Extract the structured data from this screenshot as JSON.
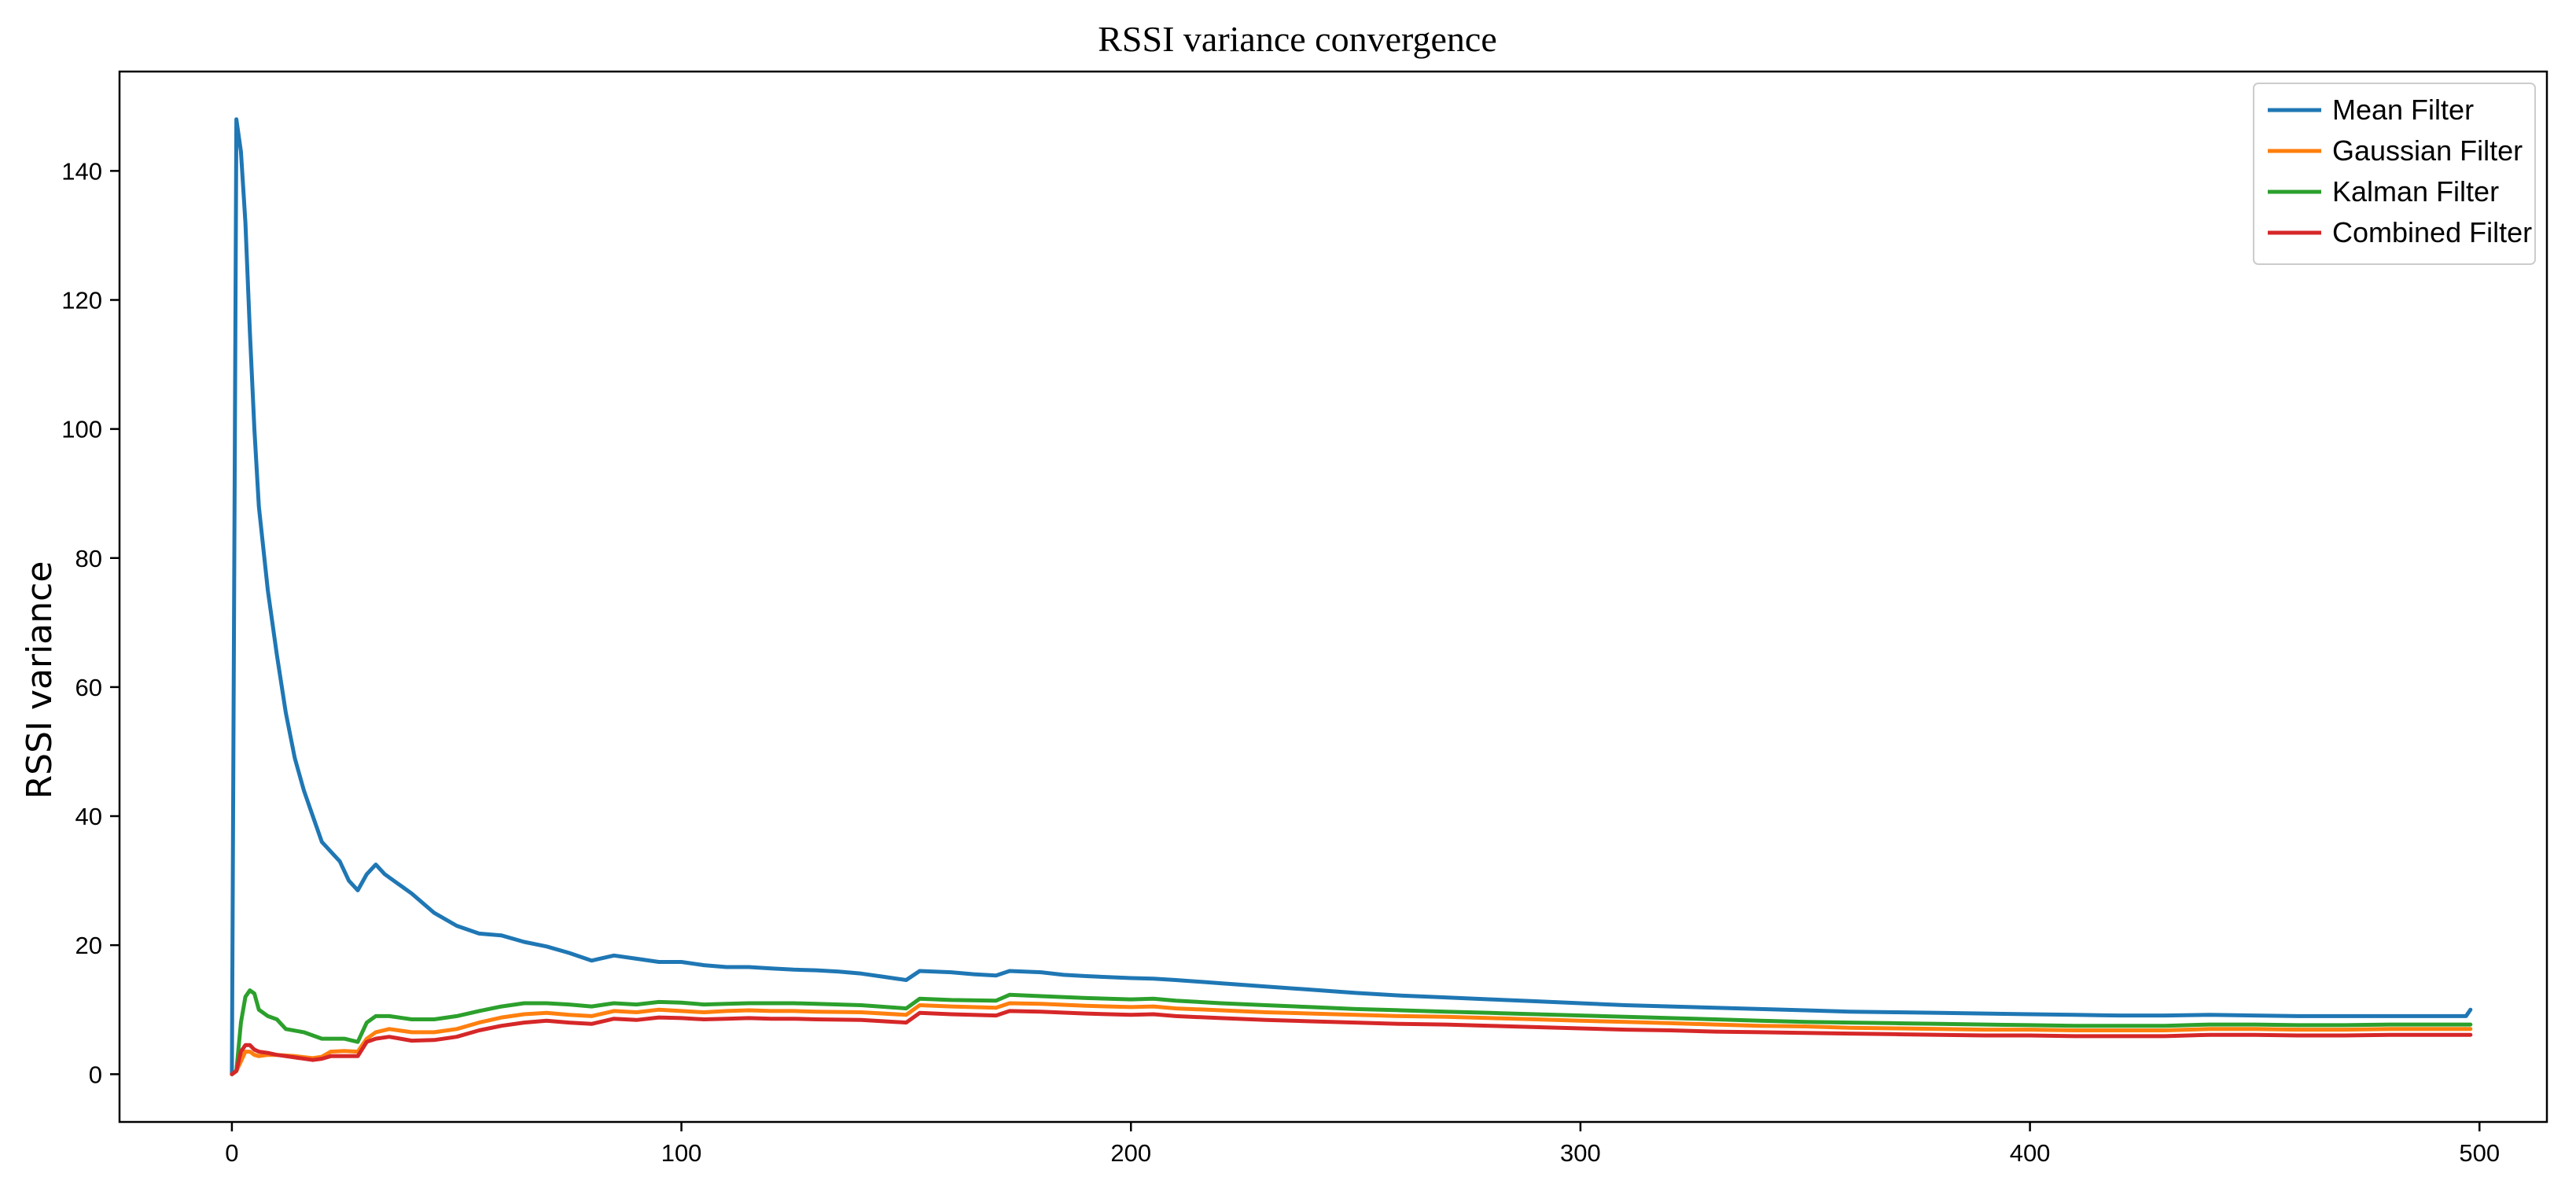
{
  "chart_data": {
    "type": "line",
    "title": "RSSI variance convergence",
    "xlabel": "",
    "ylabel": "RSSI variance",
    "xlim": [
      -25,
      515
    ],
    "ylim": [
      -7.4,
      155.4
    ],
    "x_ticks": [
      0,
      100,
      200,
      300,
      400,
      500
    ],
    "y_ticks": [
      0,
      20,
      40,
      60,
      80,
      100,
      120,
      140
    ],
    "grid": false,
    "legend_position": "top-right",
    "series": [
      {
        "name": "Mean Filter",
        "color": "#1f77b4",
        "points": [
          [
            0,
            0
          ],
          [
            1,
            148
          ],
          [
            2,
            143
          ],
          [
            3,
            132
          ],
          [
            4,
            115
          ],
          [
            5,
            100
          ],
          [
            6,
            88
          ],
          [
            8,
            75
          ],
          [
            10,
            65
          ],
          [
            12,
            56
          ],
          [
            14,
            49
          ],
          [
            16,
            44
          ],
          [
            18,
            40
          ],
          [
            20,
            36
          ],
          [
            22,
            34.5
          ],
          [
            24,
            33
          ],
          [
            26,
            30
          ],
          [
            28,
            28.5
          ],
          [
            30,
            31
          ],
          [
            32,
            32.5
          ],
          [
            34,
            31
          ],
          [
            36,
            30
          ],
          [
            38,
            29
          ],
          [
            40,
            28
          ],
          [
            45,
            25
          ],
          [
            50,
            23
          ],
          [
            55,
            21.8
          ],
          [
            60,
            21.5
          ],
          [
            65,
            20.5
          ],
          [
            70,
            19.8
          ],
          [
            75,
            18.8
          ],
          [
            80,
            17.6
          ],
          [
            85,
            18.4
          ],
          [
            90,
            17.9
          ],
          [
            95,
            17.4
          ],
          [
            100,
            17.4
          ],
          [
            105,
            16.9
          ],
          [
            110,
            16.6
          ],
          [
            115,
            16.6
          ],
          [
            120,
            16.4
          ],
          [
            125,
            16.2
          ],
          [
            130,
            16.1
          ],
          [
            135,
            15.9
          ],
          [
            140,
            15.6
          ],
          [
            145,
            15.1
          ],
          [
            150,
            14.6
          ],
          [
            153,
            16
          ],
          [
            160,
            15.8
          ],
          [
            165,
            15.5
          ],
          [
            170,
            15.3
          ],
          [
            173,
            16
          ],
          [
            180,
            15.8
          ],
          [
            185,
            15.4
          ],
          [
            190,
            15.2
          ],
          [
            200,
            14.9
          ],
          [
            205,
            14.8
          ],
          [
            210,
            14.6
          ],
          [
            220,
            14.1
          ],
          [
            230,
            13.6
          ],
          [
            240,
            13.1
          ],
          [
            250,
            12.6
          ],
          [
            260,
            12.2
          ],
          [
            270,
            11.9
          ],
          [
            280,
            11.6
          ],
          [
            290,
            11.3
          ],
          [
            300,
            11.0
          ],
          [
            310,
            10.7
          ],
          [
            320,
            10.5
          ],
          [
            330,
            10.3
          ],
          [
            340,
            10.1
          ],
          [
            350,
            9.9
          ],
          [
            360,
            9.7
          ],
          [
            370,
            9.6
          ],
          [
            380,
            9.5
          ],
          [
            390,
            9.4
          ],
          [
            400,
            9.3
          ],
          [
            410,
            9.2
          ],
          [
            420,
            9.1
          ],
          [
            430,
            9.1
          ],
          [
            440,
            9.2
          ],
          [
            450,
            9.1
          ],
          [
            460,
            9.0
          ],
          [
            470,
            9.0
          ],
          [
            480,
            9.0
          ],
          [
            490,
            9.0
          ],
          [
            497,
            9.0
          ],
          [
            498,
            10
          ]
        ]
      },
      {
        "name": "Gaussian Filter",
        "color": "#ff7f0e",
        "points": [
          [
            0,
            0
          ],
          [
            1,
            0.5
          ],
          [
            2,
            2
          ],
          [
            3,
            3.5
          ],
          [
            4,
            3.5
          ],
          [
            5,
            3
          ],
          [
            6,
            2.8
          ],
          [
            8,
            3
          ],
          [
            10,
            3
          ],
          [
            14,
            2.8
          ],
          [
            18,
            2.5
          ],
          [
            20,
            2.7
          ],
          [
            22,
            3.5
          ],
          [
            25,
            3.6
          ],
          [
            28,
            3.5
          ],
          [
            30,
            5.5
          ],
          [
            32,
            6.5
          ],
          [
            35,
            7
          ],
          [
            40,
            6.5
          ],
          [
            45,
            6.5
          ],
          [
            50,
            7
          ],
          [
            55,
            8
          ],
          [
            60,
            8.8
          ],
          [
            65,
            9.3
          ],
          [
            70,
            9.5
          ],
          [
            75,
            9.2
          ],
          [
            80,
            9
          ],
          [
            85,
            9.8
          ],
          [
            90,
            9.6
          ],
          [
            95,
            10
          ],
          [
            100,
            9.8
          ],
          [
            105,
            9.6
          ],
          [
            110,
            9.8
          ],
          [
            115,
            9.9
          ],
          [
            120,
            9.8
          ],
          [
            125,
            9.8
          ],
          [
            130,
            9.7
          ],
          [
            140,
            9.6
          ],
          [
            150,
            9.2
          ],
          [
            153,
            10.7
          ],
          [
            160,
            10.5
          ],
          [
            170,
            10.3
          ],
          [
            173,
            11
          ],
          [
            180,
            10.9
          ],
          [
            190,
            10.6
          ],
          [
            200,
            10.4
          ],
          [
            205,
            10.5
          ],
          [
            210,
            10.2
          ],
          [
            220,
            9.9
          ],
          [
            230,
            9.6
          ],
          [
            240,
            9.4
          ],
          [
            250,
            9.2
          ],
          [
            260,
            9.0
          ],
          [
            270,
            8.9
          ],
          [
            280,
            8.7
          ],
          [
            290,
            8.5
          ],
          [
            300,
            8.3
          ],
          [
            310,
            8.1
          ],
          [
            320,
            7.9
          ],
          [
            330,
            7.7
          ],
          [
            340,
            7.5
          ],
          [
            350,
            7.4
          ],
          [
            360,
            7.2
          ],
          [
            370,
            7.1
          ],
          [
            380,
            7.0
          ],
          [
            390,
            6.9
          ],
          [
            400,
            6.9
          ],
          [
            410,
            6.8
          ],
          [
            420,
            6.8
          ],
          [
            430,
            6.8
          ],
          [
            440,
            7.0
          ],
          [
            450,
            7.0
          ],
          [
            460,
            6.9
          ],
          [
            470,
            6.9
          ],
          [
            480,
            7.0
          ],
          [
            490,
            7.0
          ],
          [
            498,
            7.0
          ]
        ]
      },
      {
        "name": "Kalman Filter",
        "color": "#2ca02c",
        "points": [
          [
            0,
            0
          ],
          [
            1,
            0.5
          ],
          [
            2,
            8
          ],
          [
            3,
            12
          ],
          [
            4,
            13
          ],
          [
            5,
            12.5
          ],
          [
            6,
            10
          ],
          [
            8,
            9
          ],
          [
            10,
            8.5
          ],
          [
            12,
            7
          ],
          [
            16,
            6.5
          ],
          [
            20,
            5.5
          ],
          [
            25,
            5.5
          ],
          [
            28,
            5
          ],
          [
            30,
            8
          ],
          [
            32,
            9
          ],
          [
            35,
            9
          ],
          [
            40,
            8.5
          ],
          [
            45,
            8.5
          ],
          [
            50,
            9
          ],
          [
            55,
            9.8
          ],
          [
            60,
            10.5
          ],
          [
            65,
            11
          ],
          [
            70,
            11
          ],
          [
            75,
            10.8
          ],
          [
            80,
            10.5
          ],
          [
            85,
            11
          ],
          [
            90,
            10.8
          ],
          [
            95,
            11.2
          ],
          [
            100,
            11.1
          ],
          [
            105,
            10.8
          ],
          [
            110,
            10.9
          ],
          [
            115,
            11
          ],
          [
            120,
            11
          ],
          [
            125,
            11
          ],
          [
            130,
            10.9
          ],
          [
            140,
            10.7
          ],
          [
            150,
            10.2
          ],
          [
            153,
            11.7
          ],
          [
            160,
            11.5
          ],
          [
            170,
            11.4
          ],
          [
            173,
            12.3
          ],
          [
            180,
            12.1
          ],
          [
            190,
            11.8
          ],
          [
            200,
            11.6
          ],
          [
            205,
            11.7
          ],
          [
            210,
            11.4
          ],
          [
            220,
            11.0
          ],
          [
            230,
            10.7
          ],
          [
            240,
            10.4
          ],
          [
            250,
            10.1
          ],
          [
            260,
            9.9
          ],
          [
            270,
            9.7
          ],
          [
            280,
            9.5
          ],
          [
            290,
            9.3
          ],
          [
            300,
            9.1
          ],
          [
            310,
            8.9
          ],
          [
            320,
            8.7
          ],
          [
            330,
            8.5
          ],
          [
            340,
            8.3
          ],
          [
            350,
            8.1
          ],
          [
            360,
            8.0
          ],
          [
            370,
            7.9
          ],
          [
            380,
            7.8
          ],
          [
            390,
            7.7
          ],
          [
            400,
            7.6
          ],
          [
            410,
            7.5
          ],
          [
            420,
            7.5
          ],
          [
            430,
            7.5
          ],
          [
            440,
            7.7
          ],
          [
            450,
            7.7
          ],
          [
            460,
            7.6
          ],
          [
            470,
            7.6
          ],
          [
            480,
            7.7
          ],
          [
            490,
            7.7
          ],
          [
            498,
            7.7
          ]
        ]
      },
      {
        "name": "Combined Filter",
        "color": "#d62728",
        "points": [
          [
            0,
            0
          ],
          [
            1,
            0.5
          ],
          [
            2,
            3.5
          ],
          [
            3,
            4.5
          ],
          [
            4,
            4.5
          ],
          [
            5,
            3.8
          ],
          [
            6,
            3.5
          ],
          [
            8,
            3.3
          ],
          [
            10,
            3
          ],
          [
            14,
            2.6
          ],
          [
            18,
            2.2
          ],
          [
            20,
            2.4
          ],
          [
            22,
            2.8
          ],
          [
            25,
            2.8
          ],
          [
            28,
            2.8
          ],
          [
            30,
            5
          ],
          [
            32,
            5.5
          ],
          [
            35,
            5.8
          ],
          [
            40,
            5.2
          ],
          [
            45,
            5.3
          ],
          [
            50,
            5.8
          ],
          [
            55,
            6.8
          ],
          [
            60,
            7.5
          ],
          [
            65,
            8
          ],
          [
            70,
            8.3
          ],
          [
            75,
            8
          ],
          [
            80,
            7.8
          ],
          [
            85,
            8.6
          ],
          [
            90,
            8.4
          ],
          [
            95,
            8.8
          ],
          [
            100,
            8.7
          ],
          [
            105,
            8.5
          ],
          [
            110,
            8.6
          ],
          [
            115,
            8.7
          ],
          [
            120,
            8.6
          ],
          [
            125,
            8.6
          ],
          [
            130,
            8.5
          ],
          [
            140,
            8.4
          ],
          [
            150,
            8.0
          ],
          [
            153,
            9.5
          ],
          [
            160,
            9.3
          ],
          [
            170,
            9.1
          ],
          [
            173,
            9.8
          ],
          [
            180,
            9.7
          ],
          [
            190,
            9.4
          ],
          [
            200,
            9.2
          ],
          [
            205,
            9.3
          ],
          [
            210,
            9.0
          ],
          [
            220,
            8.7
          ],
          [
            230,
            8.4
          ],
          [
            240,
            8.2
          ],
          [
            250,
            8.0
          ],
          [
            260,
            7.8
          ],
          [
            270,
            7.7
          ],
          [
            280,
            7.5
          ],
          [
            290,
            7.3
          ],
          [
            300,
            7.1
          ],
          [
            310,
            6.9
          ],
          [
            320,
            6.8
          ],
          [
            330,
            6.6
          ],
          [
            340,
            6.5
          ],
          [
            350,
            6.4
          ],
          [
            360,
            6.3
          ],
          [
            370,
            6.2
          ],
          [
            380,
            6.1
          ],
          [
            390,
            6.0
          ],
          [
            400,
            6.0
          ],
          [
            410,
            5.9
          ],
          [
            420,
            5.9
          ],
          [
            430,
            5.9
          ],
          [
            440,
            6.1
          ],
          [
            450,
            6.1
          ],
          [
            460,
            6.0
          ],
          [
            470,
            6.0
          ],
          [
            480,
            6.1
          ],
          [
            490,
            6.1
          ],
          [
            498,
            6.1
          ]
        ]
      }
    ]
  }
}
